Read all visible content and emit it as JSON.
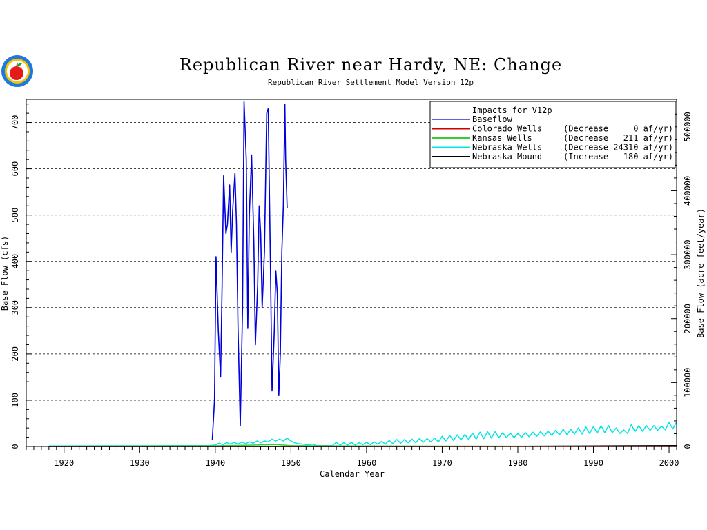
{
  "chart_data": {
    "type": "line",
    "title": "Republican River near Hardy, NE: Change",
    "subtitle": "Republican River Settlement Model Version 12p",
    "xlabel": "Calendar Year",
    "ylabel": "Base Flow (cfs)",
    "y2label": "Base Flow (acre-feet/year)",
    "xlim": [
      1915,
      2001
    ],
    "ylim": [
      0,
      750
    ],
    "y2lim": [
      0,
      542960
    ],
    "xticks": [
      1920,
      1930,
      1940,
      1950,
      1960,
      1970,
      1980,
      1990,
      2000
    ],
    "yticks": [
      0,
      100,
      200,
      300,
      400,
      500,
      600,
      700
    ],
    "y2ticks": [
      0,
      100000,
      200000,
      300000,
      400000,
      500000
    ],
    "grid": "horizontal dashed",
    "legend_position": "top-right",
    "legend_title": "Impacts for V12p",
    "series": [
      {
        "name": "Baseflow",
        "color": "#0000dd",
        "x": [
          1939.6,
          1939.9,
          1940.1,
          1940.4,
          1940.7,
          1940.9,
          1941.1,
          1941.4,
          1941.6,
          1941.9,
          1942.1,
          1942.3,
          1942.6,
          1942.8,
          1943.0,
          1943.3,
          1943.6,
          1943.8,
          1944.1,
          1944.3,
          1944.5,
          1944.8,
          1945.1,
          1945.3,
          1945.6,
          1945.8,
          1946.0,
          1946.2,
          1946.5,
          1946.8,
          1947.0,
          1947.3,
          1947.5,
          1947.8,
          1948.0,
          1948.2,
          1948.4,
          1948.6,
          1948.8,
          1949.0,
          1949.2,
          1949.3,
          1949.5
        ],
        "y": [
          15,
          100,
          410,
          250,
          150,
          350,
          585,
          460,
          480,
          565,
          420,
          510,
          590,
          480,
          260,
          45,
          300,
          745,
          620,
          255,
          500,
          630,
          440,
          220,
          350,
          520,
          460,
          300,
          420,
          720,
          730,
          380,
          120,
          250,
          380,
          330,
          110,
          200,
          420,
          520,
          740,
          620,
          515
        ]
      },
      {
        "name": "Colorado Wells",
        "legend_value": "(Decrease     0 af/yr)",
        "color": "#cc0000",
        "x": [
          1918,
          2001
        ],
        "y": [
          0,
          0
        ]
      },
      {
        "name": "Kansas Wells",
        "legend_value": "(Decrease   211 af/yr)",
        "color": "#33cc33",
        "x": [
          1918,
          1925,
          1935,
          1940,
          1945,
          1948,
          1949,
          1950,
          1953,
          1960,
          1970,
          1980,
          1990,
          2000,
          2001
        ],
        "y": [
          0.5,
          0.8,
          1.0,
          1.5,
          3.0,
          4.0,
          3.0,
          2.0,
          1.5,
          1.0,
          0.8,
          0.6,
          0.6,
          0.6,
          0.6
        ]
      },
      {
        "name": "Nebraska Wells",
        "legend_value": "(Decrease 24310 af/yr)",
        "color": "#00e5e5",
        "x": [
          1918,
          1925,
          1930,
          1935,
          1939,
          1940,
          1940.5,
          1941,
          1941.5,
          1942,
          1942.5,
          1943,
          1943.5,
          1944,
          1944.5,
          1945,
          1945.5,
          1946,
          1946.5,
          1947,
          1947.5,
          1948,
          1948.5,
          1949,
          1949.5,
          1950,
          1950.5,
          1951,
          1951.5,
          1952,
          1952.5,
          1953,
          1953.3,
          1955.5,
          1956,
          1956.5,
          1957,
          1957.5,
          1958,
          1958.5,
          1959,
          1959.5,
          1960,
          1960.5,
          1961,
          1961.5,
          1962,
          1962.5,
          1963,
          1963.5,
          1964,
          1964.5,
          1965,
          1965.5,
          1966,
          1966.5,
          1967,
          1967.5,
          1968,
          1968.5,
          1969,
          1969.5,
          1970,
          1970.5,
          1971,
          1971.5,
          1972,
          1972.5,
          1973,
          1973.5,
          1974,
          1974.5,
          1975,
          1975.5,
          1976,
          1976.5,
          1977,
          1977.5,
          1978,
          1978.5,
          1979,
          1979.5,
          1980,
          1980.5,
          1981,
          1981.5,
          1982,
          1982.5,
          1983,
          1983.5,
          1984,
          1984.5,
          1985,
          1985.5,
          1986,
          1986.5,
          1987,
          1987.5,
          1988,
          1988.5,
          1989,
          1989.5,
          1990,
          1990.5,
          1991,
          1991.5,
          1992,
          1992.5,
          1993,
          1993.5,
          1994,
          1994.5,
          1995,
          1995.5,
          1996,
          1996.5,
          1997,
          1997.5,
          1998,
          1998.5,
          1999,
          1999.5,
          2000,
          2000.5,
          2001
        ],
        "y": [
          1,
          1.5,
          1.5,
          2,
          2,
          3,
          7,
          4,
          8,
          5,
          9,
          5,
          10,
          6,
          10,
          7,
          12,
          8,
          12,
          10,
          16,
          12,
          16,
          12,
          18,
          12,
          8,
          6,
          5,
          4,
          4,
          5,
          2,
          2,
          9,
          3,
          8,
          3,
          9,
          3,
          8,
          4,
          9,
          4,
          10,
          5,
          11,
          5,
          13,
          6,
          15,
          7,
          15,
          8,
          16,
          8,
          17,
          9,
          17,
          10,
          18,
          10,
          22,
          12,
          24,
          13,
          25,
          14,
          26,
          15,
          29,
          16,
          31,
          17,
          32,
          18,
          32,
          19,
          30,
          19,
          29,
          19,
          28,
          20,
          30,
          21,
          31,
          22,
          32,
          23,
          33,
          24,
          35,
          25,
          37,
          26,
          37,
          27,
          40,
          27,
          42,
          28,
          43,
          29,
          45,
          30,
          45,
          30,
          40,
          28,
          36,
          28,
          47,
          32,
          45,
          33,
          45,
          35,
          45,
          35,
          44,
          36,
          52,
          38,
          53
        ]
      },
      {
        "name": "Nebraska Mound",
        "legend_value": "(Increase   180 af/yr)",
        "color": "#000000",
        "x": [
          1918,
          1950,
          1980,
          1995,
          2001
        ],
        "y": [
          0,
          0,
          0.3,
          1.5,
          2
        ]
      }
    ]
  }
}
